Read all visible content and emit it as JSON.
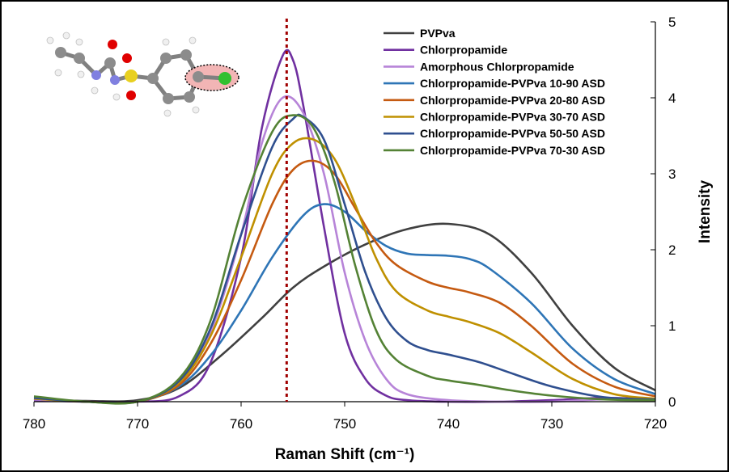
{
  "chart_data": {
    "type": "line",
    "title": "",
    "xlabel": "Raman Shift (cm⁻¹)",
    "ylabel": "Intensity",
    "xlim": [
      780,
      720
    ],
    "ylim": [
      0,
      5
    ],
    "x_reversed": true,
    "y_axis_side": "right",
    "grid": false,
    "legend_position": "top-right",
    "x_ticks": [
      780,
      770,
      760,
      750,
      740,
      730,
      720
    ],
    "y_ticks": [
      0,
      1,
      2,
      3,
      4,
      5
    ],
    "marker_line": {
      "x": 755.6,
      "color": "#a00000",
      "style": "dotted"
    },
    "inset": "molecular structure of chlorpropamide with the C–Cl group circled",
    "series": [
      {
        "name": "PVPva",
        "color": "#404040",
        "x": [
          780,
          775,
          770,
          766,
          762,
          758,
          755,
          752,
          748,
          744,
          740,
          736,
          732,
          728,
          724,
          720
        ],
        "y": [
          0.03,
          0.01,
          0.02,
          0.18,
          0.6,
          1.1,
          1.5,
          1.78,
          2.07,
          2.27,
          2.34,
          2.2,
          1.7,
          1.0,
          0.45,
          0.15
        ]
      },
      {
        "name": "Chlorpropamide",
        "color": "#7030a0",
        "x": [
          780,
          775,
          770,
          766,
          763,
          760,
          758,
          756,
          755,
          754,
          752,
          750,
          748,
          746,
          744,
          740,
          735,
          730,
          725,
          720
        ],
        "y": [
          0.02,
          0.0,
          0.0,
          0.07,
          0.5,
          1.9,
          3.6,
          4.55,
          4.5,
          3.9,
          2.3,
          0.9,
          0.3,
          0.08,
          0.02,
          0.0,
          0.0,
          0.02,
          0.05,
          0.03
        ]
      },
      {
        "name": "Amorphous Chlorpropamide",
        "color": "#b784d8",
        "x": [
          780,
          775,
          770,
          766,
          763,
          760,
          758,
          756,
          754,
          752,
          750,
          748,
          746,
          744,
          740,
          735,
          730,
          725,
          720
        ],
        "y": [
          0.03,
          0.0,
          0.0,
          0.25,
          0.9,
          2.2,
          3.4,
          4.0,
          3.8,
          3.0,
          1.7,
          0.8,
          0.3,
          0.1,
          0.02,
          0.0,
          0.0,
          0.03,
          0.02
        ]
      },
      {
        "name": "Chlorpropamide-PVPva 10-90 ASD",
        "color": "#2e75b6",
        "x": [
          780,
          775,
          770,
          766,
          763,
          760,
          757,
          754,
          752,
          750,
          748,
          746,
          744,
          742,
          740,
          738,
          736,
          732,
          728,
          724,
          720
        ],
        "y": [
          0.04,
          0.0,
          0.0,
          0.2,
          0.6,
          1.2,
          1.9,
          2.45,
          2.6,
          2.5,
          2.25,
          2.05,
          1.95,
          1.93,
          1.92,
          1.88,
          1.75,
          1.3,
          0.7,
          0.3,
          0.1
        ]
      },
      {
        "name": "Chlorpropamide-PVPva 20-80 ASD",
        "color": "#c55a11",
        "x": [
          780,
          775,
          770,
          766,
          763,
          760,
          757,
          755,
          753,
          751,
          749,
          747,
          745,
          742,
          740,
          738,
          735,
          732,
          728,
          724,
          720
        ],
        "y": [
          0.04,
          0.0,
          0.0,
          0.22,
          0.75,
          1.6,
          2.6,
          3.05,
          3.17,
          3.0,
          2.55,
          2.1,
          1.8,
          1.58,
          1.5,
          1.44,
          1.3,
          1.0,
          0.5,
          0.2,
          0.07
        ]
      },
      {
        "name": "Chlorpropamide-PVPva 30-70 ASD",
        "color": "#bf9000",
        "x": [
          780,
          775,
          770,
          766,
          763,
          760,
          757,
          755,
          753,
          751,
          749,
          747,
          745,
          742,
          740,
          738,
          735,
          732,
          728,
          724,
          720
        ],
        "y": [
          0.04,
          0.0,
          0.0,
          0.25,
          0.85,
          1.9,
          3.0,
          3.4,
          3.45,
          3.2,
          2.6,
          1.9,
          1.45,
          1.2,
          1.12,
          1.05,
          0.9,
          0.65,
          0.3,
          0.1,
          0.04
        ]
      },
      {
        "name": "Chlorpropamide-PVPva 50-50 ASD",
        "color": "#2f4f8f",
        "x": [
          780,
          775,
          770,
          766,
          763,
          760,
          757,
          755,
          754,
          752,
          750,
          748,
          746,
          744,
          742,
          740,
          737,
          734,
          730,
          725,
          720
        ],
        "y": [
          0.05,
          0.0,
          0.0,
          0.27,
          0.95,
          2.2,
          3.35,
          3.72,
          3.75,
          3.45,
          2.6,
          1.7,
          1.1,
          0.8,
          0.68,
          0.62,
          0.52,
          0.38,
          0.2,
          0.06,
          0.03
        ]
      },
      {
        "name": "Chlorpropamide-PVPva 70-30 ASD",
        "color": "#548235",
        "x": [
          780,
          775,
          770,
          766,
          763,
          760,
          757,
          755,
          753,
          751,
          749,
          747,
          745,
          742,
          740,
          737,
          734,
          730,
          725,
          720
        ],
        "y": [
          0.07,
          0.0,
          0.0,
          0.3,
          1.05,
          2.5,
          3.55,
          3.77,
          3.6,
          2.9,
          1.8,
          0.95,
          0.55,
          0.34,
          0.28,
          0.22,
          0.15,
          0.08,
          0.03,
          0.02
        ]
      }
    ]
  }
}
